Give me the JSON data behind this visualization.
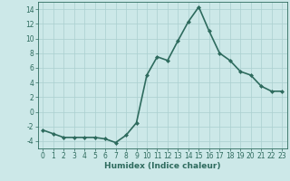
{
  "x": [
    0,
    1,
    2,
    3,
    4,
    5,
    6,
    7,
    8,
    9,
    10,
    11,
    12,
    13,
    14,
    15,
    16,
    17,
    18,
    19,
    20,
    21,
    22,
    23
  ],
  "y": [
    -2.5,
    -3.0,
    -3.5,
    -3.5,
    -3.5,
    -3.5,
    -3.7,
    -4.2,
    -3.2,
    -1.5,
    5.0,
    7.5,
    7.0,
    9.7,
    12.3,
    14.3,
    11.0,
    8.0,
    7.0,
    5.5,
    5.0,
    3.5,
    2.8,
    2.8
  ],
  "line_color": "#2e6b5e",
  "marker": "D",
  "markersize": 2.0,
  "bg_color": "#cce8e8",
  "grid_color": "#aacfcf",
  "xlabel": "Humidex (Indice chaleur)",
  "xlim": [
    -0.5,
    23.5
  ],
  "ylim": [
    -5,
    15
  ],
  "yticks": [
    -4,
    -2,
    0,
    2,
    4,
    6,
    8,
    10,
    12,
    14
  ],
  "xticks": [
    0,
    1,
    2,
    3,
    4,
    5,
    6,
    7,
    8,
    9,
    10,
    11,
    12,
    13,
    14,
    15,
    16,
    17,
    18,
    19,
    20,
    21,
    22,
    23
  ],
  "xlabel_fontsize": 6.5,
  "tick_fontsize": 5.5,
  "linewidth": 1.2
}
